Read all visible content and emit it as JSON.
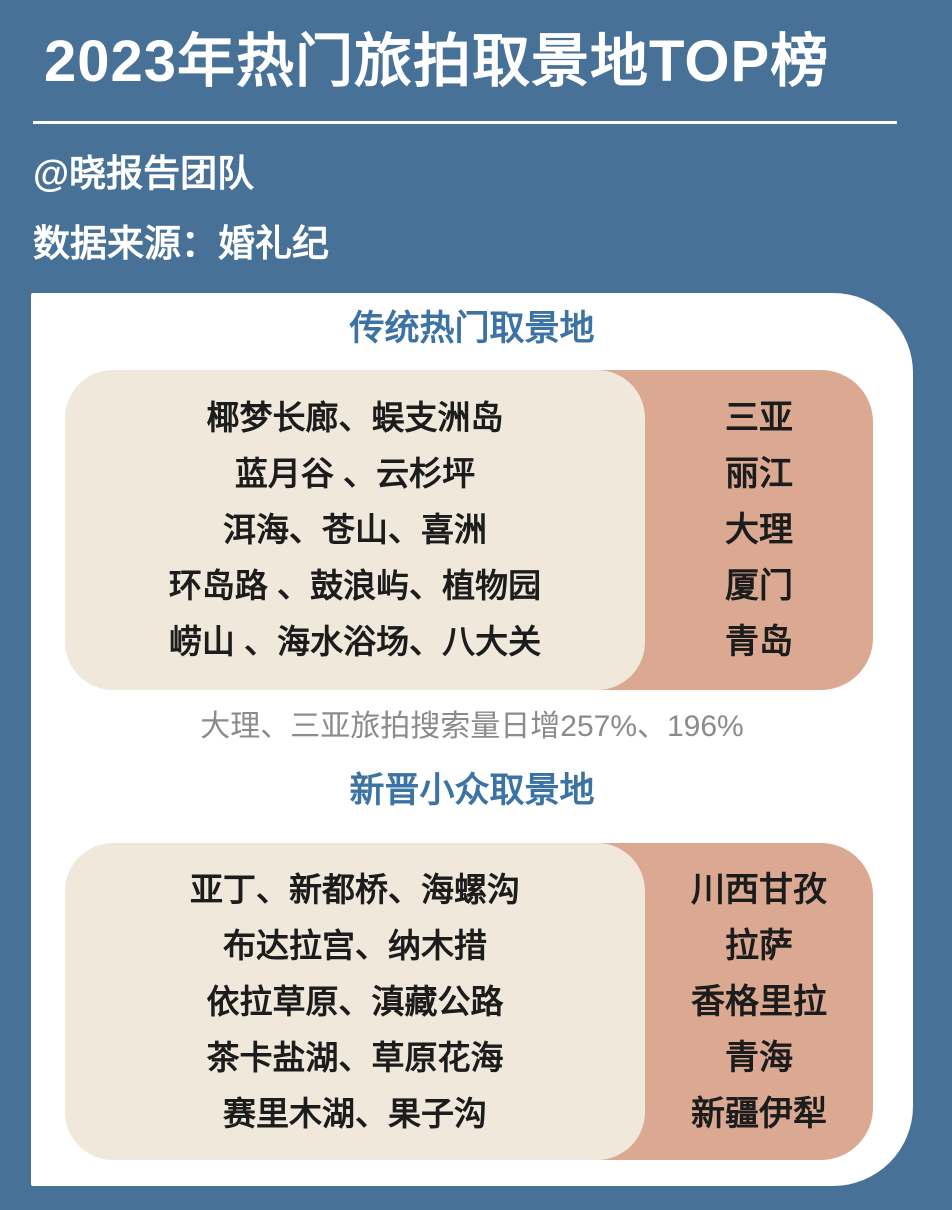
{
  "page": {
    "title": "2023年热门旅拍取景地TOP榜",
    "author": "@晓报告团队",
    "source": "数据来源：婚礼纪"
  },
  "note": "大理、三亚旅拍搜索量日增257%、196%",
  "sections": [
    {
      "title": "传统热门取景地",
      "rows": [
        {
          "spots": "椰梦长廊、蜈支洲岛",
          "city": "三亚"
        },
        {
          "spots": "蓝月谷 、云杉坪",
          "city": "丽江"
        },
        {
          "spots": "洱海、苍山、喜洲",
          "city": "大理"
        },
        {
          "spots": "环岛路 、鼓浪屿、植物园",
          "city": "厦门"
        },
        {
          "spots": "崂山 、海水浴场、八大关",
          "city": "青岛"
        }
      ]
    },
    {
      "title": "新晋小众取景地",
      "rows": [
        {
          "spots": "亚丁、新都桥、海螺沟",
          "city": "川西甘孜"
        },
        {
          "spots": "布达拉宫、纳木措",
          "city": "拉萨"
        },
        {
          "spots": "依拉草原、滇藏公路",
          "city": "香格里拉"
        },
        {
          "spots": "茶卡盐湖、草原花海",
          "city": "青海"
        },
        {
          "spots": "赛里木湖、果子沟",
          "city": "新疆伊犁"
        }
      ]
    }
  ],
  "colors": {
    "background": "#477197",
    "card": "#FFFFFF",
    "spots_panel": "#F0E8DB",
    "cities_panel": "#DBA992",
    "section_heading": "#3C73A5",
    "body_text": "#1C1C1C",
    "note_text": "#8B8B8B",
    "title_text": "#FFFFFF"
  }
}
